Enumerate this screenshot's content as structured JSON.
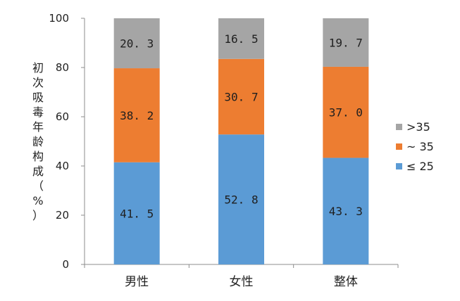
{
  "chart_data": {
    "type": "bar",
    "stacked": true,
    "categories": [
      "男性",
      "女性",
      "整体"
    ],
    "series": [
      {
        "name": "≤ 25",
        "values": [
          41.5,
          52.8,
          43.3
        ],
        "color": "#5B9BD5"
      },
      {
        "name": "~ 35",
        "values": [
          38.2,
          30.7,
          37.0
        ],
        "color": "#ED7D31"
      },
      {
        "name": ">35",
        "values": [
          20.3,
          16.5,
          19.7
        ],
        "color": "#A5A5A5"
      }
    ],
    "value_labels": [
      [
        "41. 5",
        "52. 8",
        "43. 3"
      ],
      [
        "38. 2",
        "30. 7",
        "37. 0"
      ],
      [
        "20. 3",
        "16. 5",
        "19. 7"
      ]
    ],
    "ylabel": "初次吸毒年龄构成（%）",
    "ylabel_chars": [
      "初",
      "次",
      "吸",
      "毒",
      "年",
      "龄",
      "构",
      "成",
      "（",
      "%",
      "）"
    ],
    "ylim": [
      0,
      100
    ],
    "yticks": [
      0,
      20,
      40,
      60,
      80,
      100
    ],
    "grid": false,
    "legend_position": "right",
    "legend_order": [
      ">35",
      "~ 35",
      "≤ 25"
    ],
    "axis_color": "#8C8C8C"
  }
}
